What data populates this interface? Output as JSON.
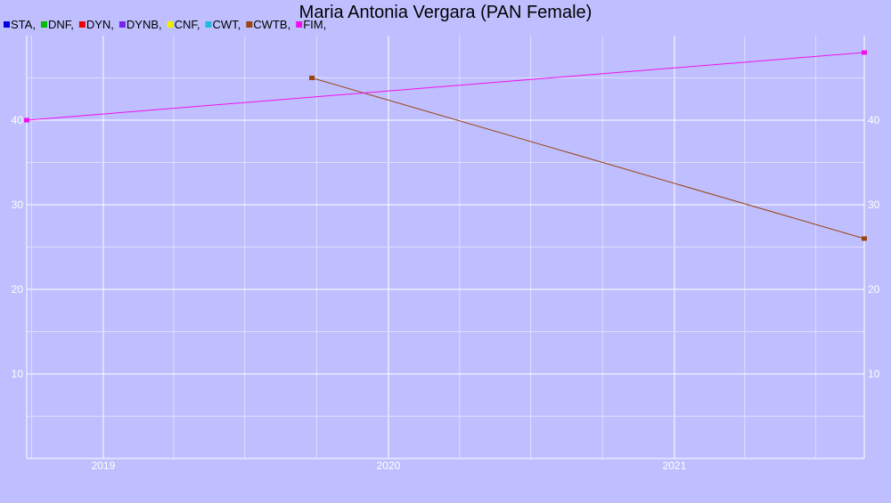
{
  "chart_data": {
    "type": "line",
    "title": "Maria Antonia Vergara (PAN Female)",
    "xlabel": "",
    "ylabel": "",
    "x_ticks": [
      "2019",
      "2020",
      "2021"
    ],
    "x_range": [
      "2018-09-25",
      "2021-09-01"
    ],
    "y_ticks": [
      10,
      20,
      30,
      40
    ],
    "ylim": [
      0,
      50
    ],
    "grid": true,
    "legend_position": "top-left",
    "legend": [
      {
        "label": "STA,",
        "color": "#0000dd"
      },
      {
        "label": "DNF,",
        "color": "#00bb00"
      },
      {
        "label": "DYN,",
        "color": "#ee0000"
      },
      {
        "label": "DYNB,",
        "color": "#7722ee"
      },
      {
        "label": "CNF,",
        "color": "#eeee00"
      },
      {
        "label": "CWT,",
        "color": "#22bbdd"
      },
      {
        "label": "CWTB,",
        "color": "#994411"
      },
      {
        "label": "FIM,",
        "color": "#ee11ee"
      }
    ],
    "series": [
      {
        "name": "CWTB",
        "color": "#994411",
        "points": [
          {
            "x": "2019-09-25",
            "y": 45
          },
          {
            "x": "2021-09-01",
            "y": 26
          }
        ]
      },
      {
        "name": "FIM",
        "color": "#ee11ee",
        "points": [
          {
            "x": "2018-09-25",
            "y": 40
          },
          {
            "x": "2021-09-01",
            "y": 48
          }
        ]
      }
    ],
    "background_color": "#bfbfff",
    "grid_color": "#ffffff"
  }
}
